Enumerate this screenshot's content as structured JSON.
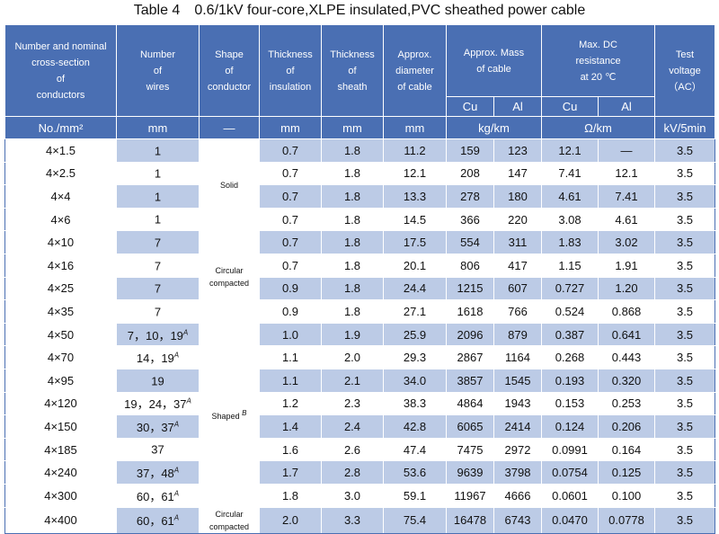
{
  "title": "Table 4　0.6/1kV four-core,XLPE insulated,PVC sheathed power cable",
  "headers": {
    "size": [
      "Number and nominal",
      "cross-section",
      "of",
      "conductors"
    ],
    "wires": [
      "Number",
      "of",
      "wires"
    ],
    "shape": [
      "Shape",
      "of",
      "conductor"
    ],
    "insulation": [
      "Thickness",
      "of",
      "insulation"
    ],
    "sheath": [
      "Thickness",
      "of",
      "sheath"
    ],
    "diameter": [
      "Approx.",
      "diameter",
      "of cable"
    ],
    "mass": [
      "Approx. Mass",
      "of cable"
    ],
    "resistance": [
      "Max. DC",
      "resistance",
      "at 20 ℃"
    ],
    "voltage": [
      "Test",
      "voltage",
      "（AC）"
    ],
    "cu": "Cu",
    "al": "Al"
  },
  "units": {
    "size": "No./mm²",
    "wires": "mm",
    "shape": "—",
    "insulation": "mm",
    "sheath": "mm",
    "diameter": "mm",
    "mass": "kg/km",
    "resistance": "Ω/km",
    "voltage": "kV/5min"
  },
  "shapes": {
    "solid": "Solid",
    "circular": [
      "Circular",
      "compacted"
    ],
    "shaped": "Shaped",
    "shaped_note": "B",
    "circular2": [
      "Circular",
      "compacted"
    ]
  },
  "rows": [
    {
      "size": "4×1.5",
      "wires": "1",
      "note": "",
      "ins": "0.7",
      "sheath": "1.8",
      "dia": "11.2",
      "cu": "159",
      "al": "123",
      "rcu": "12.1",
      "ral": "—",
      "v": "3.5"
    },
    {
      "size": "4×2.5",
      "wires": "1",
      "note": "",
      "ins": "0.7",
      "sheath": "1.8",
      "dia": "12.1",
      "cu": "208",
      "al": "147",
      "rcu": "7.41",
      "ral": "12.1",
      "v": "3.5"
    },
    {
      "size": "4×4",
      "wires": "1",
      "note": "",
      "ins": "0.7",
      "sheath": "1.8",
      "dia": "13.3",
      "cu": "278",
      "al": "180",
      "rcu": "4.61",
      "ral": "7.41",
      "v": "3.5"
    },
    {
      "size": "4×6",
      "wires": "1",
      "note": "",
      "ins": "0.7",
      "sheath": "1.8",
      "dia": "14.5",
      "cu": "366",
      "al": "220",
      "rcu": "3.08",
      "ral": "4.61",
      "v": "3.5"
    },
    {
      "size": "4×10",
      "wires": "7",
      "note": "",
      "ins": "0.7",
      "sheath": "1.8",
      "dia": "17.5",
      "cu": "554",
      "al": "311",
      "rcu": "1.83",
      "ral": "3.02",
      "v": "3.5"
    },
    {
      "size": "4×16",
      "wires": "7",
      "note": "",
      "ins": "0.7",
      "sheath": "1.8",
      "dia": "20.1",
      "cu": "806",
      "al": "417",
      "rcu": "1.15",
      "ral": "1.91",
      "v": "3.5"
    },
    {
      "size": "4×25",
      "wires": "7",
      "note": "",
      "ins": "0.9",
      "sheath": "1.8",
      "dia": "24.4",
      "cu": "1215",
      "al": "607",
      "rcu": "0.727",
      "ral": "1.20",
      "v": "3.5"
    },
    {
      "size": "4×35",
      "wires": "7",
      "note": "",
      "ins": "0.9",
      "sheath": "1.8",
      "dia": "27.1",
      "cu": "1618",
      "al": "766",
      "rcu": "0.524",
      "ral": "0.868",
      "v": "3.5"
    },
    {
      "size": "4×50",
      "wires": "7，10，19",
      "note": "A",
      "ins": "1.0",
      "sheath": "1.9",
      "dia": "25.9",
      "cu": "2096",
      "al": "879",
      "rcu": "0.387",
      "ral": "0.641",
      "v": "3.5"
    },
    {
      "size": "4×70",
      "wires": "14，19",
      "note": "A",
      "ins": "1.1",
      "sheath": "2.0",
      "dia": "29.3",
      "cu": "2867",
      "al": "1164",
      "rcu": "0.268",
      "ral": "0.443",
      "v": "3.5"
    },
    {
      "size": "4×95",
      "wires": "19",
      "note": "",
      "ins": "1.1",
      "sheath": "2.1",
      "dia": "34.0",
      "cu": "3857",
      "al": "1545",
      "rcu": "0.193",
      "ral": "0.320",
      "v": "3.5"
    },
    {
      "size": "4×120",
      "wires": "19，24，37",
      "note": "A",
      "ins": "1.2",
      "sheath": "2.3",
      "dia": "38.3",
      "cu": "4864",
      "al": "1943",
      "rcu": "0.153",
      "ral": "0.253",
      "v": "3.5"
    },
    {
      "size": "4×150",
      "wires": "30，37",
      "note": "A",
      "ins": "1.4",
      "sheath": "2.4",
      "dia": "42.8",
      "cu": "6065",
      "al": "2414",
      "rcu": "0.124",
      "ral": "0.206",
      "v": "3.5"
    },
    {
      "size": "4×185",
      "wires": "37",
      "note": "",
      "ins": "1.6",
      "sheath": "2.6",
      "dia": "47.4",
      "cu": "7475",
      "al": "2972",
      "rcu": "0.0991",
      "ral": "0.164",
      "v": "3.5"
    },
    {
      "size": "4×240",
      "wires": "37，48",
      "note": "A",
      "ins": "1.7",
      "sheath": "2.8",
      "dia": "53.6",
      "cu": "9639",
      "al": "3798",
      "rcu": "0.0754",
      "ral": "0.125",
      "v": "3.5"
    },
    {
      "size": "4×300",
      "wires": "60，61",
      "note": "A",
      "ins": "1.8",
      "sheath": "3.0",
      "dia": "59.1",
      "cu": "11967",
      "al": "4666",
      "rcu": "0.0601",
      "ral": "0.100",
      "v": "3.5"
    },
    {
      "size": "4×400",
      "wires": "60，61",
      "note": "A",
      "ins": "2.0",
      "sheath": "3.3",
      "dia": "75.4",
      "cu": "16478",
      "al": "6743",
      "rcu": "0.0470",
      "ral": "0.0778",
      "v": "3.5"
    }
  ],
  "colors": {
    "header_bg": "#4a6fb3",
    "stripe_bg": "#bccbe6",
    "white": "#ffffff"
  }
}
